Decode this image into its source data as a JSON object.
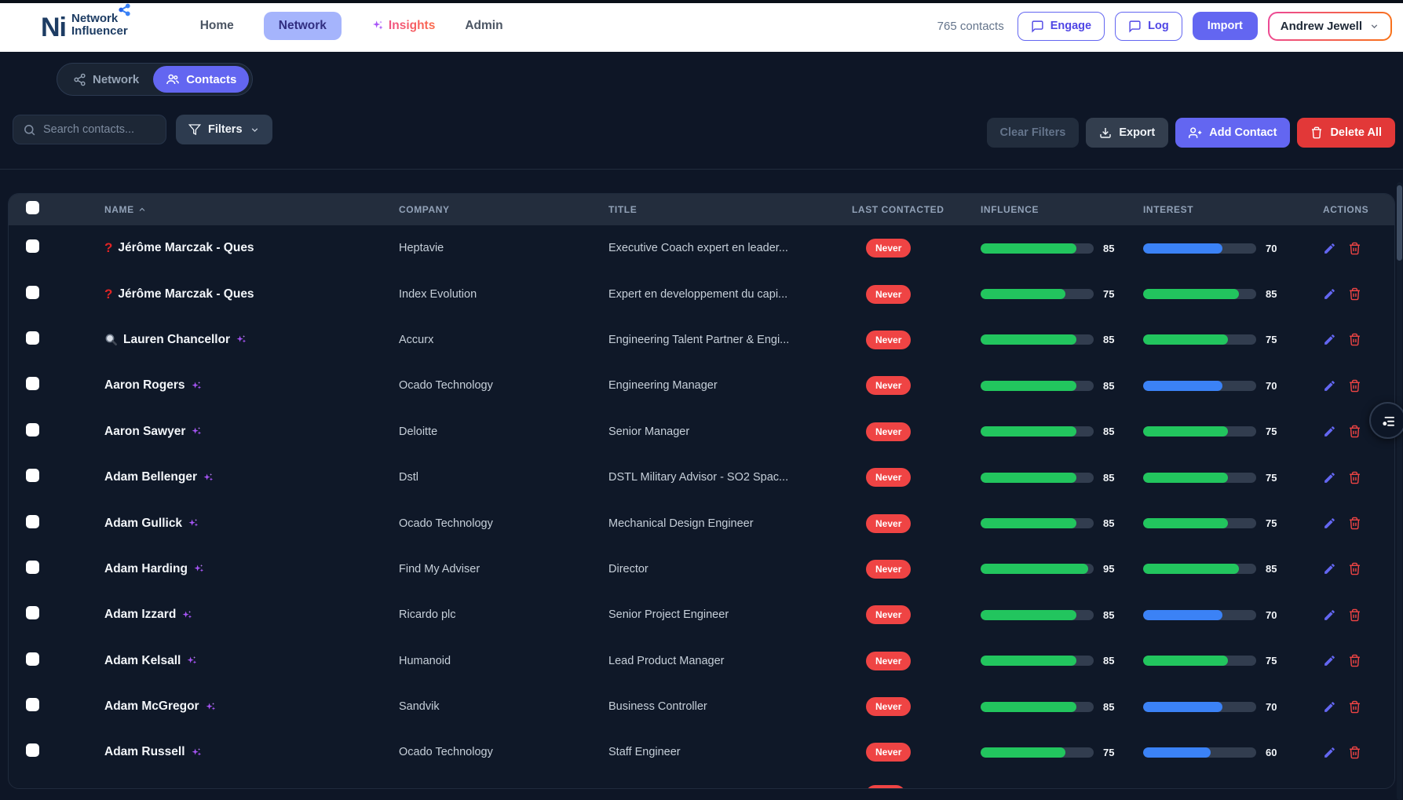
{
  "topbar": {
    "logo": {
      "mark": "Ni",
      "line1": "Network",
      "line2": "Influencer"
    },
    "nav": [
      {
        "label": "Home",
        "active": false
      },
      {
        "label": "Network",
        "active": true
      },
      {
        "label": "Insights",
        "active": false
      },
      {
        "label": "Admin",
        "active": false
      }
    ],
    "contacts_count": "765 contacts",
    "engage_label": "Engage",
    "log_label": "Log",
    "import_label": "Import",
    "user_menu": "Andrew Jewell"
  },
  "view_toggle": {
    "network_label": "Network",
    "contacts_label": "Contacts",
    "active": "Contacts"
  },
  "toolbar": {
    "search_placeholder": "Search contacts...",
    "filters_label": "Filters",
    "clear_filters_label": "Clear Filters",
    "export_label": "Export",
    "add_contact_label": "Add Contact",
    "delete_all_label": "Delete All"
  },
  "table": {
    "headers": [
      "NAME",
      "COMPANY",
      "TITLE",
      "LAST CONTACTED",
      "INFLUENCE",
      "INTEREST",
      "ACTIONS"
    ],
    "sort": {
      "column": "NAME",
      "direction": "asc"
    },
    "rows": [
      {
        "prefix": "question-mark",
        "name": "Jérôme Marczak - Ques",
        "sparkle": false,
        "company": "Heptavie",
        "title": "Executive Coach expert en leader...",
        "last_contacted": "Never",
        "influence": 85,
        "interest": 70,
        "interest_color": "blue"
      },
      {
        "prefix": "question-mark",
        "name": "Jérôme Marczak - Ques",
        "sparkle": false,
        "company": "Index Evolution",
        "title": "Expert en developpement du capi...",
        "last_contacted": "Never",
        "influence": 75,
        "interest": 85,
        "interest_color": "green"
      },
      {
        "prefix": "magnifier",
        "name": "Lauren Chancellor",
        "sparkle": true,
        "company": "Accurx",
        "title": "Engineering Talent Partner & Engi...",
        "last_contacted": "Never",
        "influence": 85,
        "interest": 75,
        "interest_color": "green"
      },
      {
        "prefix": null,
        "name": "Aaron Rogers",
        "sparkle": true,
        "company": "Ocado Technology",
        "title": "Engineering Manager",
        "last_contacted": "Never",
        "influence": 85,
        "interest": 70,
        "interest_color": "blue"
      },
      {
        "prefix": null,
        "name": "Aaron Sawyer",
        "sparkle": true,
        "company": "Deloitte",
        "title": "Senior Manager",
        "last_contacted": "Never",
        "influence": 85,
        "interest": 75,
        "interest_color": "green"
      },
      {
        "prefix": null,
        "name": "Adam Bellenger",
        "sparkle": true,
        "company": "Dstl",
        "title": "DSTL Military Advisor - SO2 Spac...",
        "last_contacted": "Never",
        "influence": 85,
        "interest": 75,
        "interest_color": "green"
      },
      {
        "prefix": null,
        "name": "Adam Gullick",
        "sparkle": true,
        "company": "Ocado Technology",
        "title": "Mechanical Design Engineer",
        "last_contacted": "Never",
        "influence": 85,
        "interest": 75,
        "interest_color": "green"
      },
      {
        "prefix": null,
        "name": "Adam Harding",
        "sparkle": true,
        "company": "Find My Adviser",
        "title": "Director",
        "last_contacted": "Never",
        "influence": 95,
        "interest": 85,
        "interest_color": "green"
      },
      {
        "prefix": null,
        "name": "Adam Izzard",
        "sparkle": true,
        "company": "Ricardo plc",
        "title": "Senior Project Engineer",
        "last_contacted": "Never",
        "influence": 85,
        "interest": 70,
        "interest_color": "blue"
      },
      {
        "prefix": null,
        "name": "Adam Kelsall",
        "sparkle": true,
        "company": "Humanoid",
        "title": "Lead Product Manager",
        "last_contacted": "Never",
        "influence": 85,
        "interest": 75,
        "interest_color": "green"
      },
      {
        "prefix": null,
        "name": "Adam McGregor",
        "sparkle": true,
        "company": "Sandvik",
        "title": "Business Controller",
        "last_contacted": "Never",
        "influence": 85,
        "interest": 70,
        "interest_color": "blue"
      },
      {
        "prefix": null,
        "name": "Adam Russell",
        "sparkle": true,
        "company": "Ocado Technology",
        "title": "Staff Engineer",
        "last_contacted": "Never",
        "influence": 75,
        "interest": 60,
        "interest_color": "blue"
      }
    ]
  },
  "icons": {
    "sparkles-icon": "purple sparkle cluster",
    "question-mark-icon": "red ?",
    "magnifier-icon": "🔍",
    "edit-icon": "pencil",
    "delete-icon": "trash",
    "chat-icon": "speech bubble",
    "download-icon": "↓ tray",
    "user-plus-icon": "person +",
    "funnel-icon": "filter funnel",
    "share-icon": "network nodes",
    "people-icon": "group",
    "chevron-down-icon": "∨",
    "sort-asc-icon": "∧",
    "contact-list-icon": "list with person dot"
  },
  "colors": {
    "accent_indigo": "#6366f1",
    "nav_active_bg": "#a5b4fc",
    "bar_green": "#22c55e",
    "bar_blue": "#3b82f6",
    "bar_track": "#323d4f",
    "badge_red": "#ef4444",
    "delete_red": "#e23838",
    "page_bg": "#0e1626",
    "card_bg": "#0f1828",
    "header_band": "#232d3d",
    "insights_gradient": [
      "#ec4899",
      "#f97316"
    ],
    "user_border_gradient": [
      "#ec4899",
      "#f97316"
    ],
    "sparkle_purple": "#a855f7",
    "logo_navy": "#1d3c63",
    "logo_blue": "#3b82f6"
  }
}
